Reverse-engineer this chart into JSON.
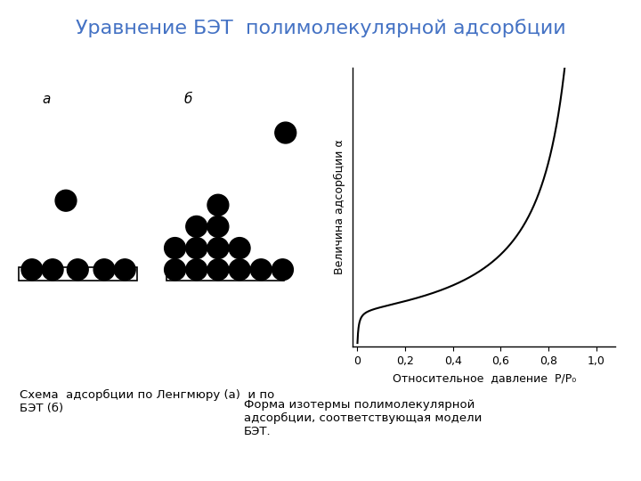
{
  "title": "Уравнение БЭТ  полимолекулярной адсорбции",
  "title_color": "#4472C4",
  "title_fontsize": 16,
  "background_color": "#ffffff",
  "label_a": "а",
  "label_b": "б",
  "caption_left": "Схема  адсорбции по Ленгмюру (а)  и по\nБЭТ (б)",
  "xlabel": "Относительное  давление  P/P₀",
  "ylabel": "Величина адсорбции α",
  "caption_right": "Форма изотермы полимолекулярной\nадсорбции, соответствующая модели\nБЭТ.",
  "xtick_labels": [
    "0",
    "0,2",
    "0,4",
    "0,6",
    "0,8",
    "1,0"
  ],
  "xtick_vals": [
    0,
    0.2,
    0.4,
    0.6,
    0.8,
    1.0
  ]
}
